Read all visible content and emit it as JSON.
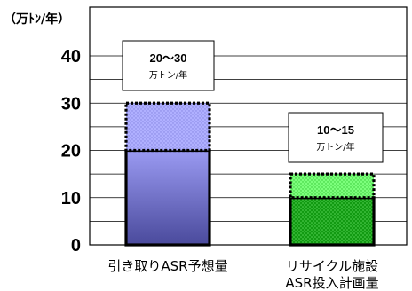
{
  "chart_data": {
    "type": "bar",
    "title": "",
    "unit_label": "（万ﾄﾝ/年）",
    "ylim": [
      0,
      40
    ],
    "yticks": [
      0,
      10,
      20,
      30,
      40
    ],
    "gridlines": [
      5,
      10,
      15,
      20,
      25,
      30,
      35,
      40
    ],
    "grid": true,
    "categories": [
      "引き取りASR予想量",
      "リサイクル施設\nASR投入計画量"
    ],
    "series": [
      {
        "values": [
          20,
          10
        ],
        "colors": [
          "#8a8ae8",
          "#109010"
        ]
      },
      {
        "values": [
          10,
          5
        ],
        "colors": [
          "#a8a8ff",
          "#66ff66"
        ]
      }
    ],
    "annotations": [
      {
        "main": "20〜30",
        "sub": "万トン/年"
      },
      {
        "main": "10〜15",
        "sub": "万トン/年"
      }
    ]
  }
}
